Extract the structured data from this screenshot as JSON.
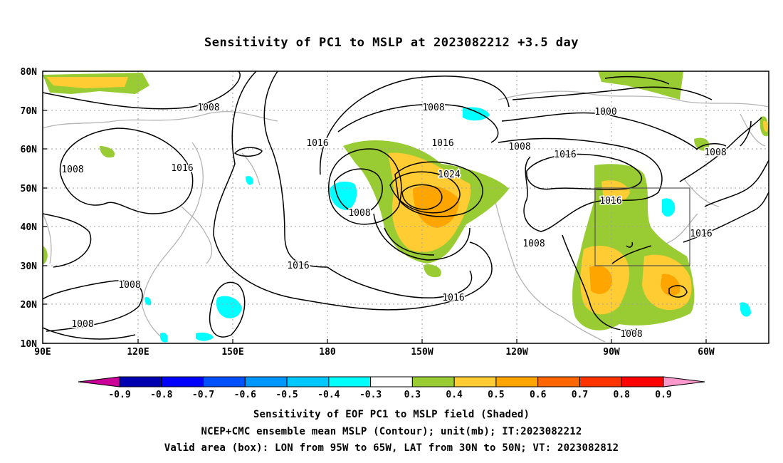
{
  "title": "Sensitivity of PC1 to MSLP at 2023082212 +3.5 day",
  "map": {
    "lat_labels": [
      "80N",
      "70N",
      "60N",
      "50N",
      "40N",
      "30N",
      "20N",
      "10N"
    ],
    "lon_labels": [
      "90E",
      "120E",
      "150E",
      "180",
      "150W",
      "120W",
      "90W",
      "60W"
    ],
    "contour_labels": [
      "1008",
      "1008",
      "1008",
      "1008",
      "1008",
      "1008",
      "1008",
      "1008",
      "1008",
      "1008",
      "1016",
      "1016",
      "1016",
      "1016",
      "1016",
      "1016",
      "1016",
      "1016",
      "1024",
      "1000"
    ],
    "box_region": "LON 95W-65W, LAT 30N-50N",
    "colors": {
      "sens_0_3": "#99cc33",
      "sens_0_4": "#ffcc33",
      "sens_0_5": "#ffa500",
      "sens_neg_0_4": "#00ffff",
      "coastline": "#b4b4b4"
    }
  },
  "colorbar": {
    "labels": [
      "-0.9",
      "-0.8",
      "-0.7",
      "-0.6",
      "-0.5",
      "-0.4",
      "-0.3",
      "0.3",
      "0.4",
      "0.5",
      "0.6",
      "0.7",
      "0.8",
      "0.9"
    ],
    "colors": [
      "#cc0099",
      "#0000b2",
      "#0000ff",
      "#0050ff",
      "#0096ff",
      "#00c8ff",
      "#00ffff",
      "#ffffff",
      "#99cc33",
      "#ffcc33",
      "#ffa500",
      "#ff6600",
      "#ff3300",
      "#ff0000",
      "#ff99cc"
    ]
  },
  "caption": {
    "line1": "Sensitivity of EOF PC1 to MSLP field (Shaded)",
    "line2": "NCEP+CMC ensemble mean MSLP (Contour); unit(mb); IT:2023082212",
    "line3": "Valid area (box): LON from 95W to 65W, LAT from 30N to 50N; VT: 2023082812"
  }
}
